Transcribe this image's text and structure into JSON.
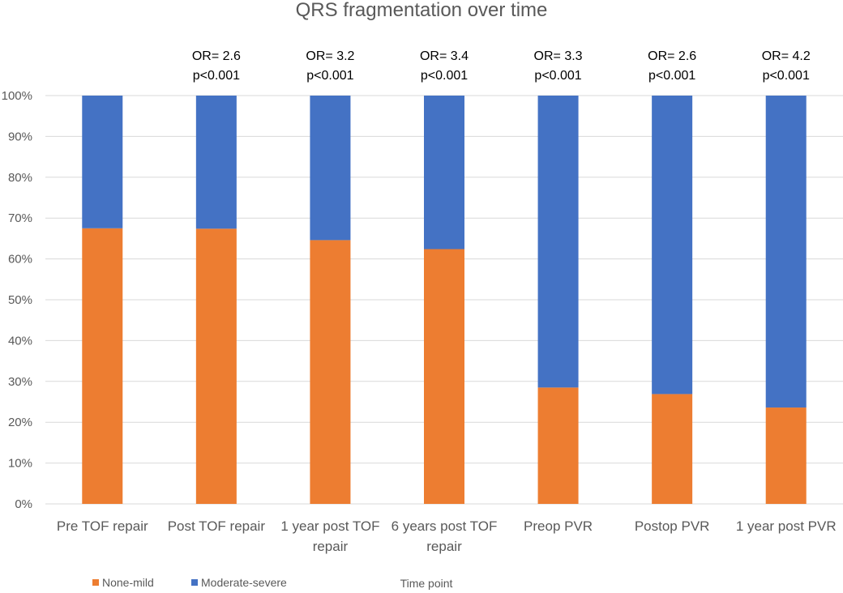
{
  "chart_data": {
    "type": "bar",
    "stacked": true,
    "percent": true,
    "title": "QRS fragmentation over time",
    "xlabel": "Time point",
    "ylabel": "",
    "ylim": [
      0,
      100
    ],
    "yticks": [
      "0%",
      "10%",
      "20%",
      "30%",
      "40%",
      "50%",
      "60%",
      "70%",
      "80%",
      "90%",
      "100%"
    ],
    "grid": true,
    "legend_position": "bottom-left",
    "categories": [
      [
        "Pre TOF repair"
      ],
      [
        "Post TOF repair"
      ],
      [
        "1 year post TOF",
        "repair"
      ],
      [
        "6 years post TOF",
        "repair"
      ],
      [
        "Preop PVR"
      ],
      [
        "Postop PVR"
      ],
      [
        "1 year post PVR"
      ]
    ],
    "series": [
      {
        "name": "None-mild",
        "color": "#ED7D31",
        "values": [
          67.5,
          67.4,
          64.6,
          62.4,
          28.5,
          26.9,
          23.6
        ]
      },
      {
        "name": "Moderate-severe",
        "color": "#4472C4",
        "values": [
          32.5,
          32.6,
          35.4,
          37.6,
          71.5,
          73.1,
          76.4
        ]
      }
    ],
    "annotations": [
      null,
      [
        "OR= 2.6",
        "p<0.001"
      ],
      [
        "OR= 3.2",
        "p<0.001"
      ],
      [
        "OR= 3.4",
        "p<0.001"
      ],
      [
        "OR= 3.3",
        "p<0.001"
      ],
      [
        "OR= 2.6",
        "p<0.001"
      ],
      [
        "OR= 4.2",
        "p<0.001"
      ]
    ]
  }
}
